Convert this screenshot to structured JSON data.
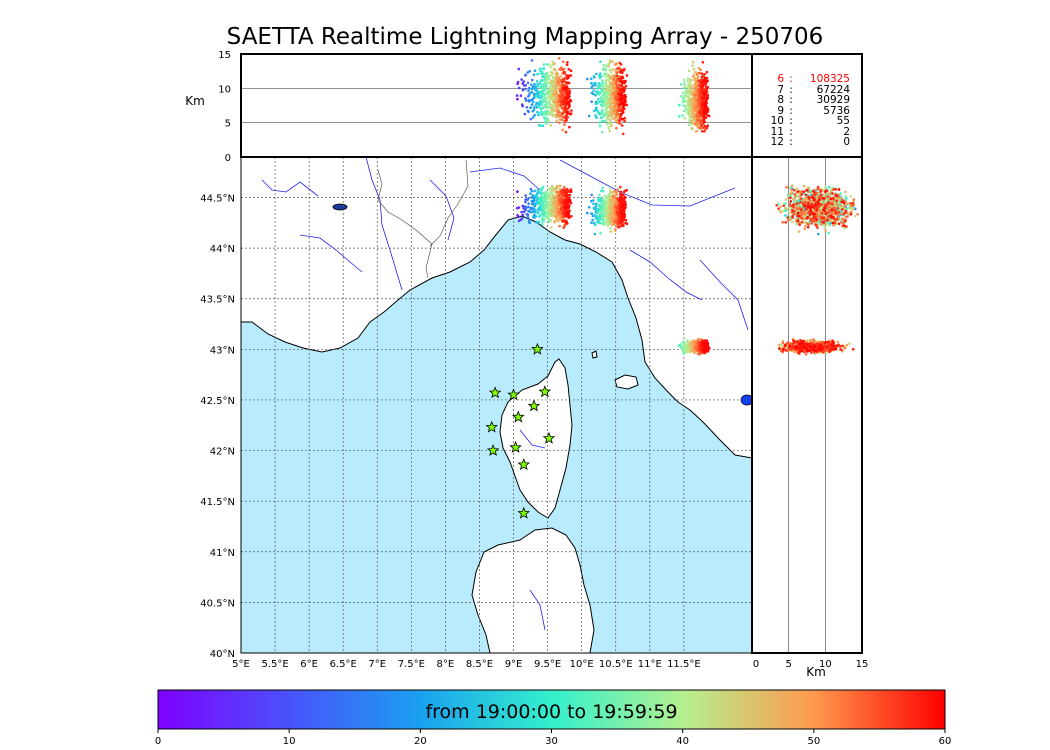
{
  "title": "SAETTA Realtime Lightning Mapping Array - 250706",
  "altitude_label": "Km",
  "lon_km_label": "Km",
  "colorbar_label": "from 19:00:00 to 19:59:59",
  "stats": [
    {
      "level": "6",
      "count": "108325",
      "highlight": true
    },
    {
      "level": "7",
      "count": "67224",
      "highlight": false
    },
    {
      "level": "8",
      "count": "30929",
      "highlight": false
    },
    {
      "level": "9",
      "count": "5736",
      "highlight": false
    },
    {
      "level": "10",
      "count": "55",
      "highlight": false
    },
    {
      "level": "11",
      "count": "2",
      "highlight": false
    },
    {
      "level": "12",
      "count": "0",
      "highlight": false
    }
  ],
  "colors": {
    "sea": "#b8ecfc",
    "land": "#ffffff",
    "river": "#2222ee",
    "coast": "#000000",
    "station": "#7fff00"
  },
  "chart_data": {
    "type": "scatter",
    "title": "SAETTA Realtime Lightning Mapping Array - 250706",
    "colormap": "rainbow",
    "map": {
      "xlim": [
        5,
        12.5
      ],
      "ylim": [
        40,
        44.9
      ],
      "x_ticks": [
        "5°E",
        "5.5°E",
        "6°E",
        "6.5°E",
        "7°E",
        "7.5°E",
        "8°E",
        "8.5°E",
        "9°E",
        "9.5°E",
        "10°E",
        "10.5°E",
        "11°E",
        "11.5°E"
      ],
      "x_tick_values": [
        5,
        5.5,
        6,
        6.5,
        7,
        7.5,
        8,
        8.5,
        9,
        9.5,
        10,
        10.5,
        11,
        11.5
      ],
      "y_ticks": [
        "40°N",
        "40.5°N",
        "41°N",
        "41.5°N",
        "42°N",
        "42.5°N",
        "43°N",
        "43.5°N",
        "44°N",
        "44.5°N"
      ],
      "y_tick_values": [
        40,
        40.5,
        41,
        41.5,
        42,
        42.5,
        43,
        43.5,
        44,
        44.5
      ],
      "grid": "dotted"
    },
    "altitude_panel": {
      "ylabel": "Km",
      "ylim": [
        0,
        15
      ],
      "y_ticks": [
        "0",
        "5",
        "10",
        "15"
      ],
      "y_tick_values": [
        0,
        5,
        10,
        15
      ]
    },
    "latitude_altitude_panel": {
      "xlabel": "Km",
      "xlim": [
        0,
        15
      ],
      "x_ticks": [
        "0",
        "5",
        "10",
        "15"
      ],
      "x_tick_values": [
        0,
        5,
        10,
        15
      ]
    },
    "colorbar": {
      "min": 0,
      "max": 60,
      "ticks": [
        "0",
        "10",
        "20",
        "30",
        "40",
        "50",
        "60"
      ],
      "tick_values": [
        0,
        10,
        20,
        30,
        40,
        50,
        60
      ],
      "label": "from 19:00:00 to 19:59:59"
    },
    "clusters": [
      {
        "lon": [
          8.95,
          9.85
        ],
        "lat": [
          44.2,
          44.65
        ],
        "alt": [
          3,
          15
        ],
        "t": [
          0,
          60
        ]
      },
      {
        "lon": [
          10.05,
          10.65
        ],
        "lat": [
          44.15,
          44.6
        ],
        "alt": [
          3,
          15
        ],
        "t": [
          15,
          60
        ]
      },
      {
        "lon": [
          11.4,
          11.85
        ],
        "lat": [
          42.95,
          43.1
        ],
        "alt": [
          2.5,
          14
        ],
        "t": [
          30,
          60
        ]
      }
    ],
    "stations": [
      {
        "lon": 9.35,
        "lat": 43.0
      },
      {
        "lon": 8.73,
        "lat": 42.57
      },
      {
        "lon": 9.0,
        "lat": 42.55
      },
      {
        "lon": 9.46,
        "lat": 42.58
      },
      {
        "lon": 9.3,
        "lat": 42.44
      },
      {
        "lon": 9.07,
        "lat": 42.33
      },
      {
        "lon": 8.68,
        "lat": 42.23
      },
      {
        "lon": 9.52,
        "lat": 42.12
      },
      {
        "lon": 8.7,
        "lat": 42.0
      },
      {
        "lon": 9.03,
        "lat": 42.03
      },
      {
        "lon": 9.15,
        "lat": 41.86
      },
      {
        "lon": 9.15,
        "lat": 41.38
      }
    ],
    "stats": [
      {
        "level": 6,
        "count": 108325
      },
      {
        "level": 7,
        "count": 67224
      },
      {
        "level": 8,
        "count": 30929
      },
      {
        "level": 9,
        "count": 5736
      },
      {
        "level": 10,
        "count": 55
      },
      {
        "level": 11,
        "count": 2
      },
      {
        "level": 12,
        "count": 0
      }
    ]
  }
}
